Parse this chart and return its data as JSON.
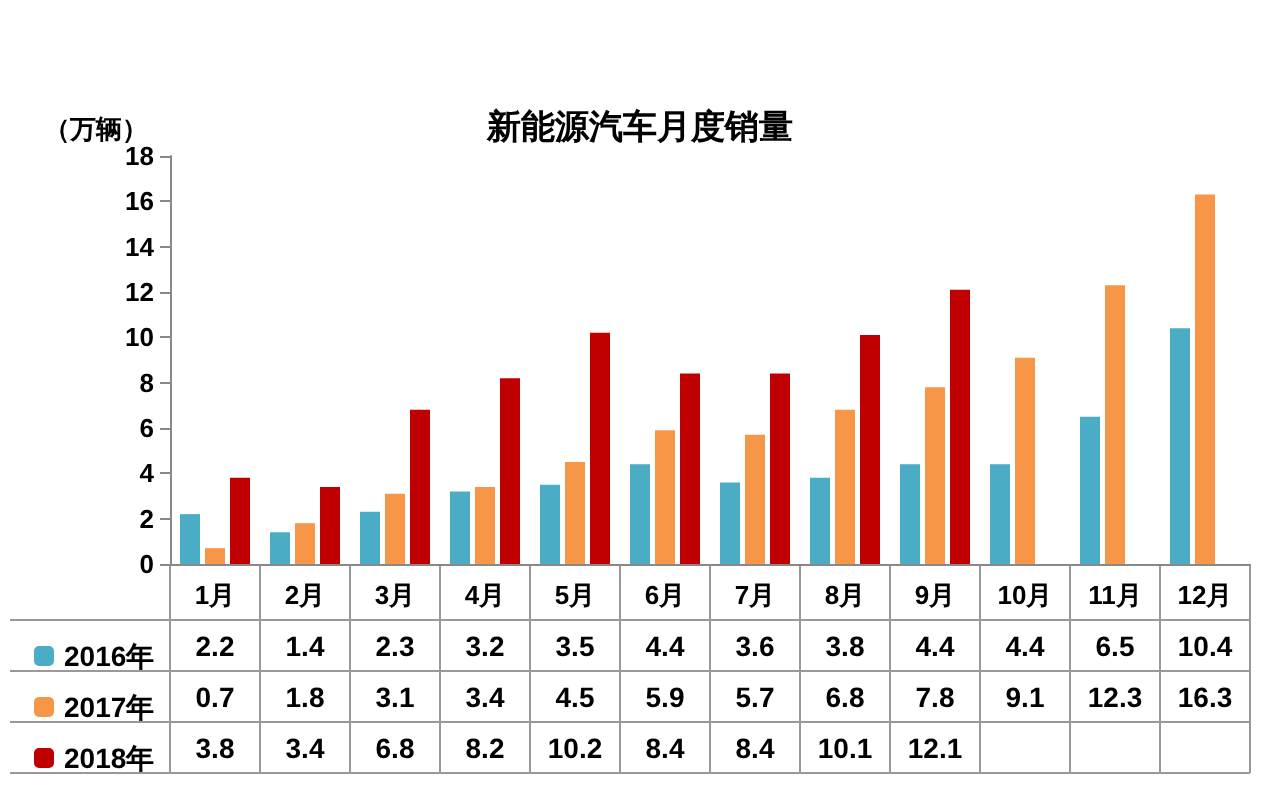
{
  "chart_data": {
    "type": "bar",
    "title": "新能源汽车月度销量",
    "ylabel": "（万辆）",
    "categories": [
      "1月",
      "2月",
      "3月",
      "4月",
      "5月",
      "6月",
      "7月",
      "8月",
      "9月",
      "10月",
      "11月",
      "12月"
    ],
    "series": [
      {
        "name": "2016年",
        "color": "#4bacc6",
        "values": [
          2.2,
          1.4,
          2.3,
          3.2,
          3.5,
          4.4,
          3.6,
          3.8,
          4.4,
          4.4,
          6.5,
          10.4
        ]
      },
      {
        "name": "2017年",
        "color": "#f79646",
        "values": [
          0.7,
          1.8,
          3.1,
          3.4,
          4.5,
          5.9,
          5.7,
          6.8,
          7.8,
          9.1,
          12.3,
          16.3
        ]
      },
      {
        "name": "2018年",
        "color": "#c00000",
        "values": [
          3.8,
          3.4,
          6.8,
          8.2,
          10.2,
          8.4,
          8.4,
          10.1,
          12.1,
          null,
          null,
          null
        ]
      }
    ],
    "ylim": [
      0,
      18
    ],
    "yticks": [
      0,
      2,
      4,
      6,
      8,
      10,
      12,
      14,
      16,
      18
    ],
    "grid": false,
    "legend": "bottom left",
    "data_labels": true
  }
}
